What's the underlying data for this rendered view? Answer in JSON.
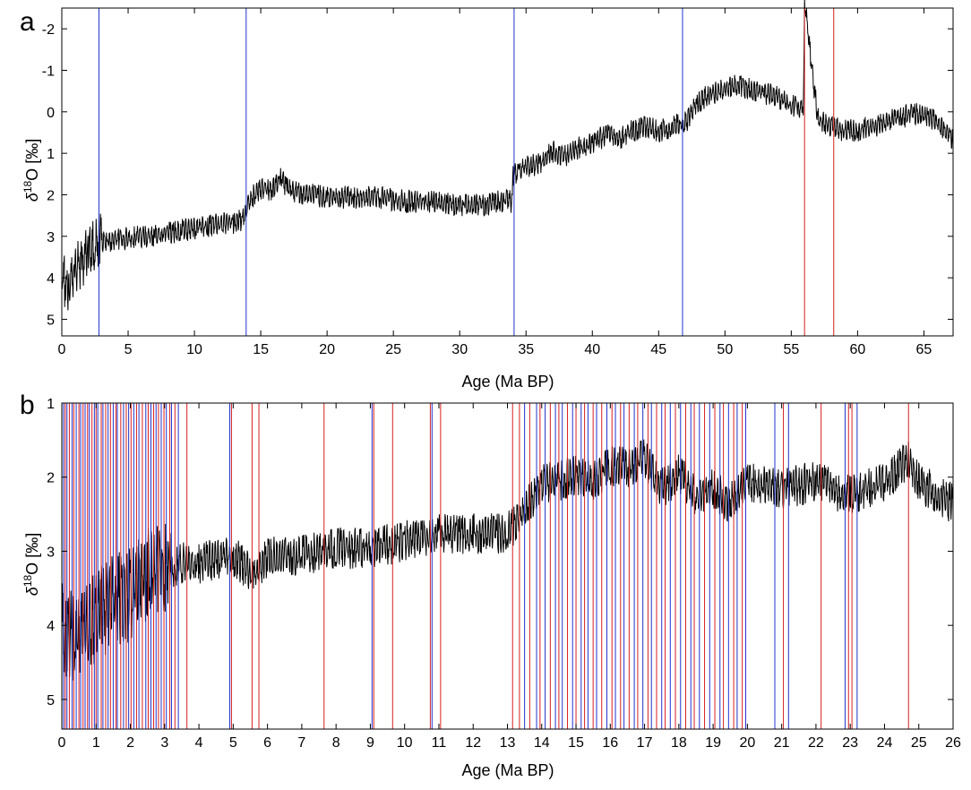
{
  "panels": [
    {
      "letter": "a",
      "xlabel": "Age (Ma BP)",
      "ylabel_delta": "δ",
      "ylabel_sup": "18",
      "ylabel_rest": "O [‰]"
    },
    {
      "letter": "b",
      "xlabel": "Age (Ma BP)",
      "ylabel_delta": "δ",
      "ylabel_sup": "18",
      "ylabel_rest": "O [‰]"
    }
  ],
  "chart_data": [
    {
      "type": "line",
      "panel": "a",
      "xlabel": "Age (Ma BP)",
      "ylabel": "δ18O [‰]",
      "xlim": [
        0,
        67.2
      ],
      "ylim": [
        -2.5,
        5.4
      ],
      "y_reversed": true,
      "xticks": [
        0,
        5,
        10,
        15,
        20,
        25,
        30,
        35,
        40,
        45,
        50,
        55,
        60,
        65
      ],
      "yticks": [
        -2,
        -1,
        0,
        1,
        2,
        3,
        4,
        5
      ],
      "series": [
        {
          "color": "#000000",
          "x": [
            0,
            0.5,
            1,
            1.5,
            2,
            2.5,
            2.8,
            3,
            4,
            5,
            7,
            9,
            11,
            13,
            13.8,
            14,
            15,
            16,
            16.5,
            17,
            18,
            20,
            22,
            24,
            26,
            28,
            30,
            32,
            33,
            33.9,
            34,
            34.5,
            36,
            37,
            38,
            39,
            40,
            41,
            42,
            43,
            44,
            45,
            46,
            47,
            48,
            49,
            50,
            51,
            52,
            53,
            54,
            55,
            55.9,
            56,
            57,
            58,
            59,
            60,
            61,
            62,
            63,
            64,
            65,
            66,
            67.2
          ],
          "y": [
            4.3,
            4.5,
            4.1,
            4.0,
            3.6,
            3.5,
            3.4,
            3.3,
            3.2,
            3.2,
            3.1,
            3.0,
            2.9,
            2.8,
            2.7,
            2.3,
            2.0,
            2.0,
            1.7,
            2.0,
            2.1,
            2.2,
            2.2,
            2.2,
            2.3,
            2.3,
            2.4,
            2.4,
            2.3,
            2.3,
            1.7,
            1.5,
            1.4,
            1.1,
            1.2,
            1.0,
            0.9,
            0.7,
            0.8,
            0.6,
            0.5,
            0.6,
            0.5,
            0.4,
            -0.1,
            -0.3,
            -0.4,
            -0.5,
            -0.4,
            -0.3,
            -0.2,
            0.0,
            0.0,
            -2.5,
            0.3,
            0.5,
            0.6,
            0.6,
            0.5,
            0.4,
            0.3,
            0.2,
            0.2,
            0.4,
            0.8
          ]
        }
      ],
      "vlines_blue": [
        2.8,
        13.9,
        34.1,
        46.8
      ],
      "vlines_red": [
        56.0,
        58.2
      ]
    },
    {
      "type": "line",
      "panel": "b",
      "xlabel": "Age (Ma BP)",
      "ylabel": "δ18O [‰]",
      "xlim": [
        0,
        26
      ],
      "ylim": [
        1,
        5.4
      ],
      "y_reversed": true,
      "xticks": [
        0,
        1,
        2,
        3,
        4,
        5,
        6,
        7,
        8,
        9,
        10,
        11,
        12,
        13,
        14,
        15,
        16,
        17,
        18,
        19,
        20,
        21,
        22,
        23,
        24,
        25,
        26
      ],
      "yticks": [
        1,
        2,
        3,
        4,
        5
      ],
      "series": [
        {
          "color": "#000000",
          "x": [
            0,
            0.3,
            0.6,
            1.0,
            1.5,
            2.0,
            2.5,
            3.0,
            3.5,
            4.0,
            5.0,
            5.6,
            6.0,
            7.0,
            8.0,
            9.0,
            10.0,
            11.0,
            12.0,
            13.0,
            13.5,
            14.0,
            14.5,
            15.0,
            15.5,
            16.0,
            16.5,
            17.0,
            17.5,
            18.0,
            18.5,
            19.0,
            19.5,
            20.0,
            21.0,
            22.0,
            23.0,
            24.0,
            24.7,
            25.0,
            26.0
          ],
          "y": [
            4.3,
            4.5,
            4.3,
            4.2,
            4.0,
            3.9,
            3.6,
            3.5,
            3.3,
            3.3,
            3.2,
            3.5,
            3.2,
            3.2,
            3.1,
            3.1,
            3.0,
            2.9,
            2.9,
            2.9,
            2.6,
            2.2,
            2.2,
            2.1,
            2.2,
            2.0,
            2.0,
            1.9,
            2.3,
            2.1,
            2.4,
            2.3,
            2.5,
            2.2,
            2.3,
            2.2,
            2.4,
            2.2,
            1.9,
            2.2,
            2.5
          ]
        }
      ],
      "vlines_blue": [
        0.05,
        0.15,
        0.3,
        0.42,
        0.55,
        0.68,
        0.8,
        0.95,
        1.05,
        1.2,
        1.35,
        1.5,
        1.62,
        1.8,
        1.95,
        2.1,
        2.25,
        2.45,
        2.6,
        2.75,
        2.9,
        3.05,
        3.2,
        3.4,
        4.9,
        9.05,
        10.8,
        13.5,
        13.85,
        14.1,
        14.4,
        14.6,
        14.9,
        15.15,
        15.35,
        15.6,
        15.9,
        16.15,
        16.4,
        16.7,
        16.95,
        17.2,
        17.5,
        17.75,
        18.05,
        18.35,
        18.6,
        18.9,
        19.2,
        19.45,
        19.7,
        19.95,
        20.8,
        21.2,
        22.85,
        23.2
      ],
      "vlines_red": [
        0.1,
        0.22,
        0.35,
        0.5,
        0.62,
        0.75,
        0.88,
        1.0,
        1.15,
        1.28,
        1.42,
        1.58,
        1.72,
        1.88,
        2.02,
        2.18,
        2.35,
        2.52,
        2.68,
        2.82,
        2.98,
        3.15,
        3.3,
        3.65,
        4.95,
        5.55,
        5.75,
        7.65,
        9.1,
        9.65,
        10.75,
        11.05,
        13.15,
        13.35,
        13.65,
        13.95,
        14.25,
        14.5,
        14.75,
        15.0,
        15.25,
        15.5,
        15.75,
        16.05,
        16.3,
        16.55,
        16.8,
        17.1,
        17.35,
        17.6,
        17.9,
        18.2,
        18.45,
        18.75,
        19.05,
        19.3,
        19.6,
        19.85,
        21.05,
        22.15,
        22.95,
        23.05,
        24.7
      ]
    }
  ]
}
